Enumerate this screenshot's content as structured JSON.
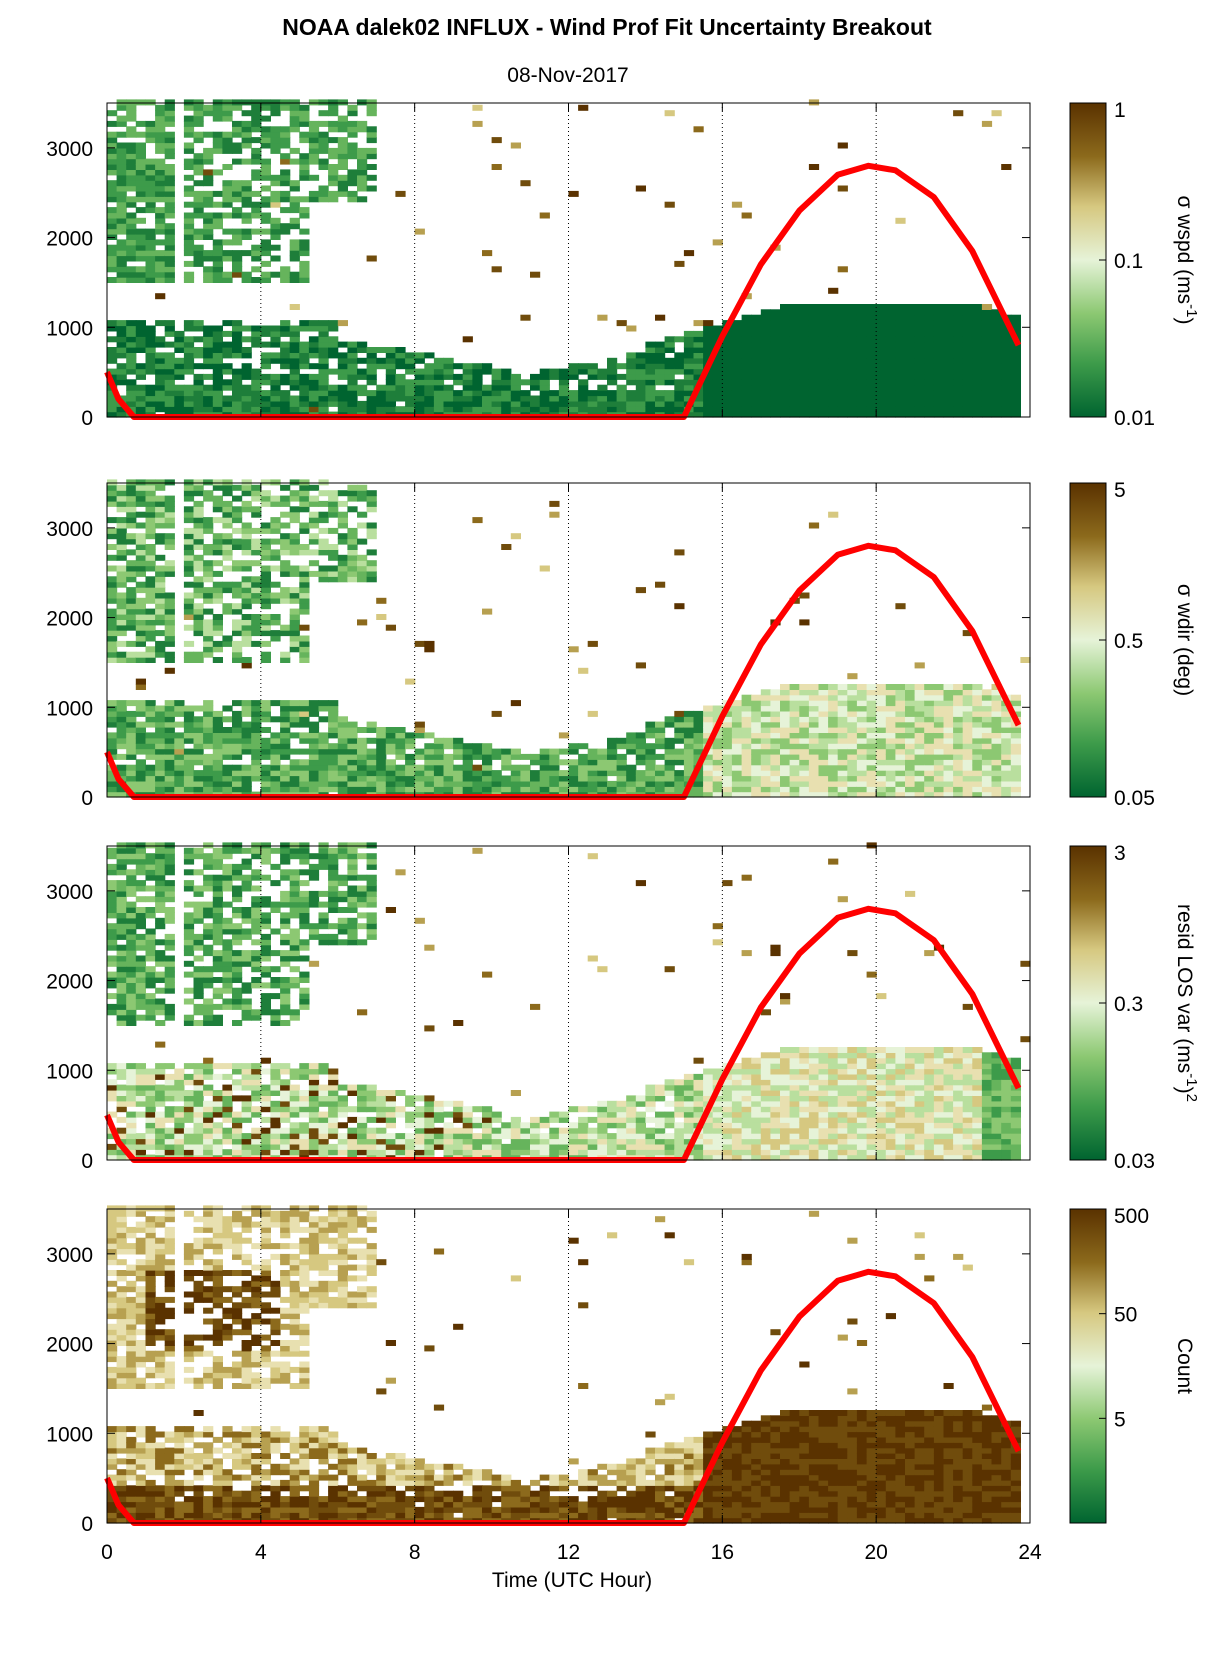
{
  "chart_data": {
    "type": "heatmap",
    "title": "NOAA dalek02 INFLUX - Wind Prof Fit Uncertainty Breakout",
    "subtitle": "08-Nov-2017",
    "xlabel": "Time (UTC Hour)",
    "xlim": [
      0,
      24
    ],
    "x_ticks": [
      "0",
      "4",
      "8",
      "12",
      "16",
      "20",
      "24"
    ],
    "ylim": [
      0,
      3500
    ],
    "y_ticks": [
      "0",
      "1000",
      "2000",
      "3000"
    ],
    "colormap": [
      "#006430",
      "#3d9b4a",
      "#8cc872",
      "#e6f3d8",
      "#d6c880",
      "#8c6a1c",
      "#5a3200"
    ],
    "sun_elevation_curve": {
      "color": "#ff0000",
      "x": [
        0,
        0.3,
        0.7,
        15,
        16,
        17,
        18,
        19,
        19.8,
        20.5,
        21.5,
        22.5,
        23.7
      ],
      "y": [
        500,
        200,
        0,
        0,
        900,
        1700,
        2300,
        2700,
        2800,
        2750,
        2450,
        1850,
        800
      ]
    },
    "panels": [
      {
        "name": "wspd",
        "colorbar_label_prefix": "σ wspd (ms",
        "colorbar_label_sup": "-1",
        "colorbar_label_suffix": ")",
        "colorbar_scale": "log",
        "colorbar_range": [
          0.01,
          1
        ],
        "colorbar_ticks": [
          "1",
          "0.1",
          "0.01"
        ]
      },
      {
        "name": "wdir",
        "colorbar_label_prefix": "σ wdir (deg)",
        "colorbar_label_sup": "",
        "colorbar_label_suffix": "",
        "colorbar_scale": "log",
        "colorbar_range": [
          0.05,
          5
        ],
        "colorbar_ticks": [
          "5",
          "0.5",
          "0.05"
        ]
      },
      {
        "name": "resid",
        "colorbar_label_prefix": "resid LOS var (ms",
        "colorbar_label_sup": "-1",
        "colorbar_label_suffix": ")",
        "colorbar_label_sup2": "2",
        "colorbar_scale": "log",
        "colorbar_range": [
          0.03,
          3
        ],
        "colorbar_ticks": [
          "3",
          "0.3",
          "0.03"
        ]
      },
      {
        "name": "count",
        "colorbar_label_prefix": "Count",
        "colorbar_label_sup": "",
        "colorbar_label_suffix": "",
        "colorbar_scale": "log",
        "colorbar_range": [
          0.5,
          500
        ],
        "colorbar_ticks": [
          "500",
          "50",
          "5"
        ]
      }
    ]
  }
}
